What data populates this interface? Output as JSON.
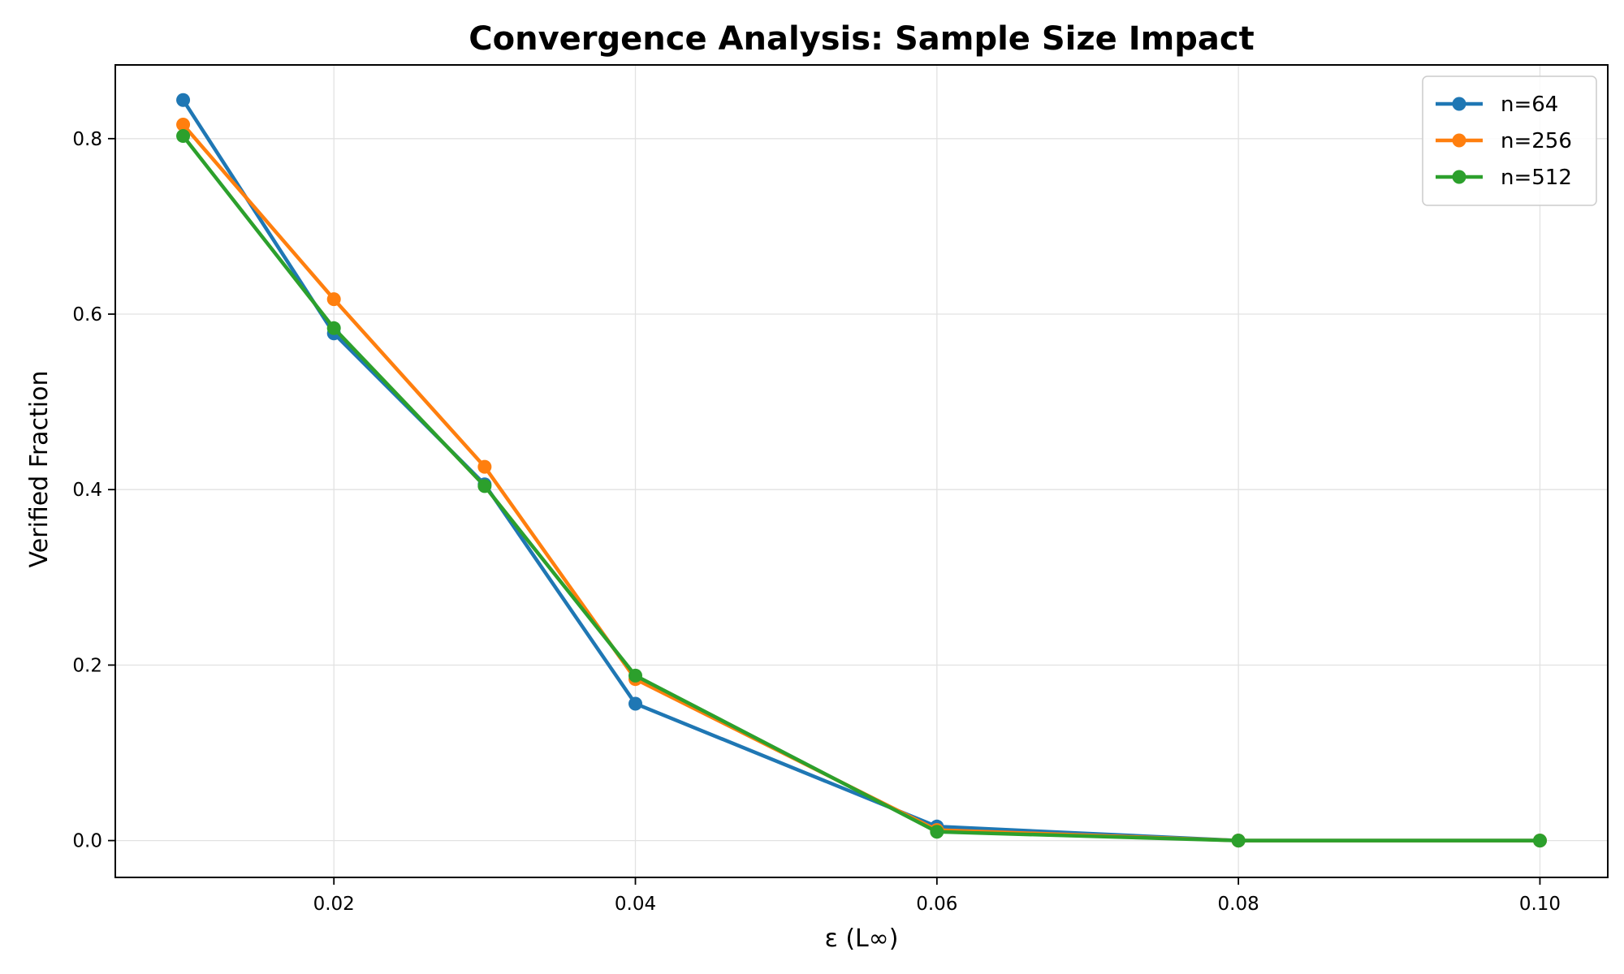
{
  "chart_data": {
    "type": "line",
    "title": "Convergence Analysis: Sample Size Impact",
    "xlabel": "ε (L∞)",
    "ylabel": "Verified Fraction",
    "x": [
      0.01,
      0.02,
      0.03,
      0.04,
      0.06,
      0.08,
      0.1
    ],
    "xlim": [
      0.0055,
      0.1045
    ],
    "ylim": [
      -0.042,
      0.884
    ],
    "x_ticks": [
      "0.02",
      "0.04",
      "0.06",
      "0.08",
      "0.10"
    ],
    "y_ticks": [
      "0.0",
      "0.2",
      "0.4",
      "0.6",
      "0.8"
    ],
    "grid": true,
    "legend_position": "top-right",
    "series": [
      {
        "name": "n=64",
        "color": "#1f77b4",
        "values": [
          0.844,
          0.578,
          0.406,
          0.156,
          0.016,
          0.0,
          0.0
        ]
      },
      {
        "name": "n=256",
        "color": "#ff7f0e",
        "values": [
          0.816,
          0.617,
          0.426,
          0.184,
          0.012,
          0.0,
          0.0
        ]
      },
      {
        "name": "n=512",
        "color": "#2ca02c",
        "values": [
          0.803,
          0.584,
          0.404,
          0.188,
          0.01,
          0.0,
          0.0
        ]
      }
    ]
  }
}
